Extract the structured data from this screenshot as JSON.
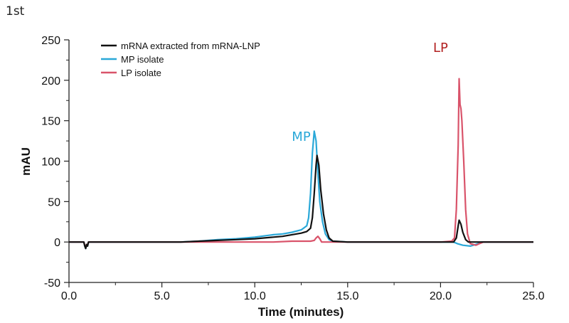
{
  "panel_label": "1st",
  "chart_data": {
    "type": "line",
    "title": "",
    "xlabel": "Time (minutes)",
    "ylabel": "mAU",
    "xlim": [
      0,
      25
    ],
    "ylim": [
      -50,
      250
    ],
    "x_ticks": [
      "0.0",
      "5.0",
      "10.0",
      "15.0",
      "20.0",
      "25.0"
    ],
    "x_tick_values": [
      0,
      5,
      10,
      15,
      20,
      25
    ],
    "y_ticks": [
      "-50",
      "0",
      "50",
      "100",
      "150",
      "200",
      "250"
    ],
    "y_tick_values": [
      -50,
      0,
      50,
      100,
      150,
      200,
      250
    ],
    "grid": false,
    "legend_position": "top-left",
    "annotations": [
      {
        "text": "MP",
        "x": 12.5,
        "y": 125,
        "color": "#2aa8d8"
      },
      {
        "text": "LP",
        "x": 20.0,
        "y": 235,
        "color": "#b22222"
      }
    ],
    "series": [
      {
        "name": "mRNA extracted from mRNA-LNP",
        "color": "#111111",
        "points": [
          [
            0,
            0
          ],
          [
            0.8,
            0
          ],
          [
            0.85,
            -5
          ],
          [
            0.9,
            -8
          ],
          [
            0.95,
            -3
          ],
          [
            1.0,
            -5
          ],
          [
            1.05,
            0
          ],
          [
            3,
            0
          ],
          [
            6,
            0
          ],
          [
            7,
            1
          ],
          [
            8,
            2
          ],
          [
            9,
            3
          ],
          [
            10,
            4
          ],
          [
            11,
            6
          ],
          [
            11.5,
            7
          ],
          [
            12,
            9
          ],
          [
            12.5,
            11
          ],
          [
            12.8,
            13
          ],
          [
            13.0,
            17
          ],
          [
            13.1,
            30
          ],
          [
            13.2,
            60
          ],
          [
            13.3,
            95
          ],
          [
            13.35,
            107
          ],
          [
            13.45,
            95
          ],
          [
            13.55,
            65
          ],
          [
            13.7,
            35
          ],
          [
            13.85,
            15
          ],
          [
            14.0,
            5
          ],
          [
            14.2,
            1
          ],
          [
            15,
            0
          ],
          [
            20,
            0
          ],
          [
            20.7,
            0
          ],
          [
            20.85,
            5
          ],
          [
            20.95,
            20
          ],
          [
            21.0,
            27
          ],
          [
            21.1,
            22
          ],
          [
            21.2,
            12
          ],
          [
            21.35,
            3
          ],
          [
            21.5,
            0
          ],
          [
            25,
            0
          ]
        ]
      },
      {
        "name": "MP isolate",
        "color": "#2aa8d8",
        "points": [
          [
            0,
            0
          ],
          [
            0.8,
            0
          ],
          [
            0.85,
            -5
          ],
          [
            0.9,
            -8
          ],
          [
            0.95,
            -3
          ],
          [
            1.0,
            -5
          ],
          [
            1.05,
            0
          ],
          [
            3,
            0
          ],
          [
            6,
            0
          ],
          [
            7,
            1
          ],
          [
            8,
            3
          ],
          [
            9,
            4
          ],
          [
            10,
            6
          ],
          [
            11,
            9
          ],
          [
            11.5,
            10
          ],
          [
            12,
            12
          ],
          [
            12.5,
            15
          ],
          [
            12.8,
            20
          ],
          [
            12.9,
            30
          ],
          [
            13.0,
            60
          ],
          [
            13.1,
            110
          ],
          [
            13.2,
            137
          ],
          [
            13.3,
            125
          ],
          [
            13.4,
            85
          ],
          [
            13.5,
            50
          ],
          [
            13.65,
            25
          ],
          [
            13.8,
            10
          ],
          [
            14.0,
            3
          ],
          [
            14.2,
            1
          ],
          [
            15,
            0
          ],
          [
            20,
            0
          ],
          [
            20.7,
            0
          ],
          [
            20.9,
            -2
          ],
          [
            21.2,
            -4
          ],
          [
            21.6,
            -5
          ],
          [
            21.9,
            -3
          ],
          [
            22.2,
            0
          ],
          [
            25,
            0
          ]
        ]
      },
      {
        "name": "LP isolate",
        "color": "#d9536a",
        "points": [
          [
            0,
            0
          ],
          [
            0.8,
            0
          ],
          [
            0.85,
            -4
          ],
          [
            0.9,
            -7
          ],
          [
            0.95,
            -3
          ],
          [
            1.0,
            -4
          ],
          [
            1.05,
            0
          ],
          [
            3,
            0
          ],
          [
            10,
            0
          ],
          [
            11,
            0
          ],
          [
            12,
            1
          ],
          [
            12.8,
            1
          ],
          [
            13.0,
            1
          ],
          [
            13.2,
            2
          ],
          [
            13.3,
            5
          ],
          [
            13.4,
            7
          ],
          [
            13.5,
            4
          ],
          [
            13.6,
            0
          ],
          [
            14,
            0
          ],
          [
            20,
            0
          ],
          [
            20.6,
            1
          ],
          [
            20.75,
            5
          ],
          [
            20.85,
            40
          ],
          [
            20.95,
            120
          ],
          [
            21.0,
            202
          ],
          [
            21.05,
            170
          ],
          [
            21.1,
            165
          ],
          [
            21.15,
            150
          ],
          [
            21.25,
            100
          ],
          [
            21.35,
            40
          ],
          [
            21.45,
            10
          ],
          [
            21.6,
            -2
          ],
          [
            21.9,
            -4
          ],
          [
            22.1,
            -2
          ],
          [
            22.3,
            0
          ],
          [
            25,
            0
          ]
        ]
      }
    ]
  }
}
